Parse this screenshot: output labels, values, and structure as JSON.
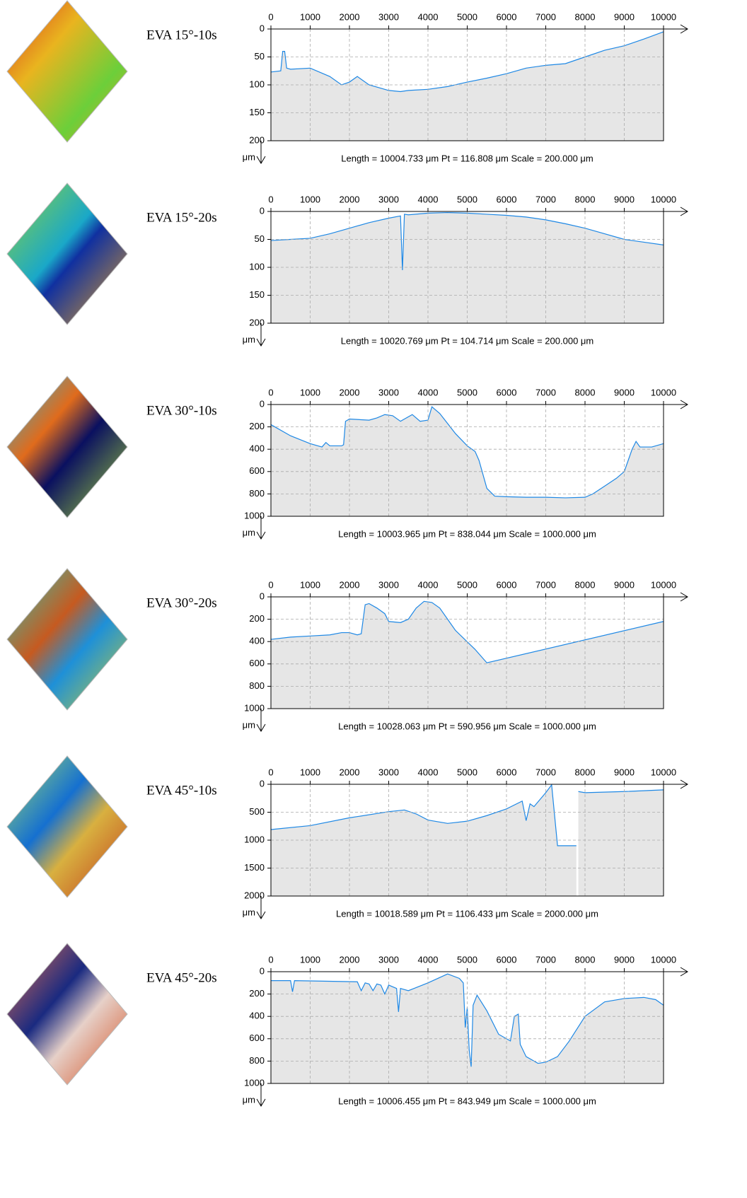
{
  "chart_data": [
    {
      "type": "line",
      "title": "EVA 15°-10s",
      "note": "Length = 10004.733 μm  Pt = 116.808 μm  Scale = 200.000 μm",
      "y_unit": "μm",
      "color": "#1e88e5",
      "grid": true,
      "x": [
        0,
        250,
        300,
        350,
        400,
        500,
        1000,
        1500,
        1800,
        2000,
        2200,
        2500,
        3000,
        3300,
        3500,
        4000,
        4500,
        5000,
        5500,
        6000,
        6500,
        7000,
        7500,
        8000,
        8500,
        9000,
        9500,
        10000
      ],
      "values": [
        77,
        75,
        40,
        40,
        70,
        72,
        70,
        85,
        100,
        95,
        85,
        100,
        110,
        112,
        110,
        108,
        103,
        95,
        88,
        80,
        70,
        65,
        62,
        50,
        38,
        30,
        18,
        5
      ],
      "xlim": [
        0,
        10000
      ],
      "ylim": [
        200,
        0
      ],
      "xticks": [
        0,
        1000,
        2000,
        3000,
        4000,
        5000,
        6000,
        7000,
        8000,
        9000,
        10000
      ],
      "yticks": [
        0,
        50,
        100,
        150,
        200
      ]
    },
    {
      "type": "line",
      "title": "EVA 15°-20s",
      "note": "Length = 10020.769 μm  Pt = 104.714 μm  Scale = 200.000 μm",
      "y_unit": "μm",
      "color": "#1e88e5",
      "grid": true,
      "x": [
        0,
        500,
        1000,
        1500,
        2000,
        2500,
        3000,
        3300,
        3350,
        3400,
        3500,
        4000,
        4500,
        5000,
        5500,
        6000,
        6500,
        7000,
        7500,
        8000,
        8500,
        9000,
        9500,
        10000
      ],
      "values": [
        52,
        50,
        48,
        40,
        30,
        20,
        12,
        8,
        105,
        5,
        6,
        3,
        2,
        3,
        5,
        7,
        10,
        15,
        22,
        30,
        40,
        50,
        55,
        60
      ],
      "xlim": [
        0,
        10000
      ],
      "ylim": [
        200,
        0
      ],
      "xticks": [
        0,
        1000,
        2000,
        3000,
        4000,
        5000,
        6000,
        7000,
        8000,
        9000,
        10000
      ],
      "yticks": [
        0,
        50,
        100,
        150,
        200
      ]
    },
    {
      "type": "line",
      "title": "EVA 30°-10s",
      "note": "Length = 10003.965 μm  Pt = 838.044 μm  Scale = 1000.000 μm",
      "y_unit": "μm",
      "color": "#1e88e5",
      "grid": true,
      "x": [
        0,
        500,
        1000,
        1300,
        1400,
        1500,
        1800,
        1850,
        1900,
        2000,
        2500,
        2700,
        2900,
        3100,
        3300,
        3400,
        3600,
        3800,
        4000,
        4100,
        4300,
        4700,
        5000,
        5200,
        5300,
        5500,
        5700,
        6000,
        6500,
        7000,
        7500,
        8000,
        8200,
        8500,
        8800,
        9000,
        9100,
        9200,
        9300,
        9400,
        9700,
        10000
      ],
      "values": [
        180,
        280,
        350,
        380,
        340,
        370,
        370,
        360,
        150,
        130,
        140,
        120,
        90,
        100,
        150,
        130,
        90,
        150,
        140,
        20,
        80,
        260,
        370,
        420,
        500,
        750,
        820,
        825,
        830,
        830,
        835,
        830,
        800,
        730,
        660,
        600,
        500,
        400,
        330,
        380,
        380,
        350
      ],
      "xlim": [
        0,
        10000
      ],
      "ylim": [
        1000,
        0
      ],
      "xticks": [
        0,
        1000,
        2000,
        3000,
        4000,
        5000,
        6000,
        7000,
        8000,
        9000,
        10000
      ],
      "yticks": [
        0,
        200,
        400,
        600,
        800,
        1000
      ]
    },
    {
      "type": "line",
      "title": "EVA 30°-20s",
      "note": "Length = 10028.063 μm  Pt = 590.956 μm  Scale = 1000.000 μm",
      "y_unit": "μm",
      "color": "#1e88e5",
      "grid": true,
      "x": [
        0,
        500,
        1000,
        1500,
        1800,
        2000,
        2200,
        2300,
        2400,
        2500,
        2700,
        2900,
        3000,
        3300,
        3500,
        3700,
        3900,
        4100,
        4300,
        4700,
        5200,
        5500,
        10000
      ],
      "values": [
        380,
        360,
        350,
        340,
        320,
        320,
        340,
        330,
        70,
        60,
        100,
        150,
        220,
        230,
        200,
        100,
        40,
        50,
        100,
        300,
        470,
        590,
        220
      ],
      "xlim": [
        0,
        10000
      ],
      "ylim": [
        1000,
        0
      ],
      "xticks": [
        0,
        1000,
        2000,
        3000,
        4000,
        5000,
        6000,
        7000,
        8000,
        9000,
        10000
      ],
      "yticks": [
        0,
        200,
        400,
        600,
        800,
        1000
      ]
    },
    {
      "type": "line",
      "title": "EVA 45°-10s",
      "note": "Length = 10018.589 μm  Pt = 1106.433 μm  Scale = 2000.000 μm",
      "y_unit": "μm",
      "color": "#1e88e5",
      "grid": true,
      "x": [
        0,
        1000,
        2000,
        3000,
        3400,
        3700,
        4000,
        4500,
        5000,
        5500,
        6000,
        6400,
        6500,
        6600,
        6700,
        7000,
        7150,
        7300,
        7780,
        7800,
        7830,
        8000,
        9000,
        10000
      ],
      "values": [
        810,
        740,
        600,
        490,
        460,
        530,
        640,
        700,
        660,
        560,
        440,
        300,
        650,
        350,
        400,
        150,
        10,
        1100,
        1100,
        null,
        130,
        150,
        130,
        100
      ],
      "xlim": [
        0,
        10000
      ],
      "ylim": [
        2000,
        0
      ],
      "xticks": [
        0,
        1000,
        2000,
        3000,
        4000,
        5000,
        6000,
        7000,
        8000,
        9000,
        10000
      ],
      "yticks": [
        0,
        500,
        1000,
        1500,
        2000
      ]
    },
    {
      "type": "line",
      "title": "EVA 45°-20s",
      "note": "Length = 10006.455 μm  Pt = 843.949 μm  Scale = 1000.000 μm",
      "y_unit": "μm",
      "color": "#1e88e5",
      "grid": true,
      "x": [
        0,
        500,
        550,
        600,
        2200,
        2300,
        2400,
        2500,
        2600,
        2700,
        2800,
        2900,
        3000,
        3200,
        3250,
        3300,
        3500,
        4000,
        4500,
        4800,
        4900,
        4950,
        5000,
        5050,
        5100,
        5150,
        5250,
        5500,
        5800,
        6100,
        6200,
        6300,
        6350,
        6500,
        6800,
        7000,
        7300,
        7600,
        8000,
        8500,
        9000,
        9500,
        9800,
        10000
      ],
      "values": [
        80,
        80,
        180,
        80,
        90,
        170,
        100,
        110,
        170,
        110,
        120,
        200,
        120,
        150,
        360,
        150,
        170,
        100,
        20,
        60,
        100,
        500,
        320,
        700,
        850,
        300,
        210,
        350,
        560,
        620,
        400,
        380,
        650,
        760,
        820,
        810,
        760,
        620,
        400,
        270,
        240,
        230,
        250,
        300
      ],
      "xlim": [
        0,
        10000
      ],
      "ylim": [
        1000,
        0
      ],
      "xticks": [
        0,
        1000,
        2000,
        3000,
        4000,
        5000,
        6000,
        7000,
        8000,
        9000,
        10000
      ],
      "yticks": [
        0,
        200,
        400,
        600,
        800,
        1000
      ]
    }
  ]
}
